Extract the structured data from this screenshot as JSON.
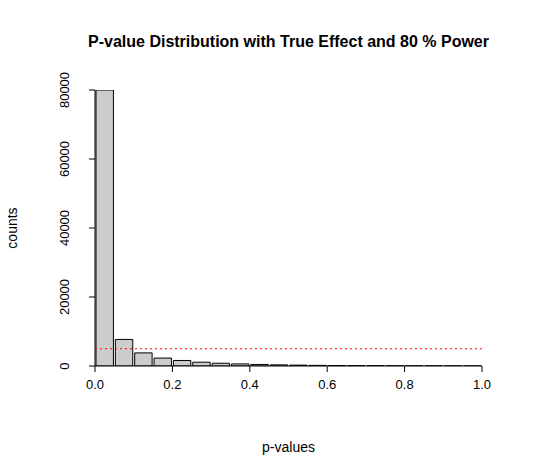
{
  "chart_data": {
    "type": "histogram",
    "title": "P-value Distribution with True Effect and 80 % Power",
    "x_label": "p-values",
    "y_label": "counts",
    "bins": [
      0,
      0.05,
      0.1,
      0.15,
      0.2,
      0.25,
      0.3,
      0.35,
      0.4,
      0.45,
      0.5,
      0.55,
      0.6,
      0.65,
      0.7,
      0.75,
      0.8,
      0.85,
      0.9,
      0.95,
      1
    ],
    "values": [
      80000,
      7700,
      3800,
      2300,
      1600,
      1100,
      800,
      600,
      450,
      330,
      250,
      180,
      130,
      100,
      70,
      50,
      35,
      25,
      15,
      5
    ],
    "color": "#cccccc",
    "xlim": [
      0,
      1
    ],
    "xticks": [
      {
        "value": 0,
        "label": "0.0"
      },
      {
        "value": 0.2,
        "label": "0.2"
      },
      {
        "value": 0.4,
        "label": "0.4"
      },
      {
        "value": 0.6,
        "label": "0.6"
      },
      {
        "value": 0.8,
        "label": "0.8"
      },
      {
        "value": 1,
        "label": "1.0"
      }
    ],
    "ylim": [
      0,
      80000
    ],
    "yticks": [
      0,
      20000,
      40000,
      60000,
      80000
    ],
    "grid": false,
    "reference_line": {
      "value": 5000,
      "color": "red",
      "line_style": "dotted"
    }
  }
}
